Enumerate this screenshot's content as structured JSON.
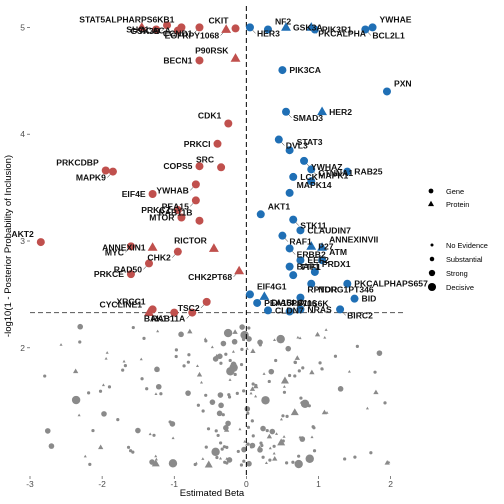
{
  "chart_data": {
    "type": "scatter",
    "xlabel": "Estimated Beta",
    "ylabel": "-log10(1 - Posterior Probability of Inclusion)",
    "xlim": [
      -3.0,
      2.2
    ],
    "ylim": [
      0.8,
      5.2
    ],
    "x_ticks": [
      "-3",
      "-2",
      "-1",
      "0",
      "1",
      "2"
    ],
    "x_tick_values": [
      -3,
      -2,
      -1,
      0,
      1,
      2
    ],
    "y_ticks": [
      "2",
      "3",
      "4",
      "5"
    ],
    "y_tick_values": [
      2,
      3,
      4,
      5
    ],
    "threshold_y": 2.33,
    "zero_x": 0,
    "colors": {
      "negative": "#c0504d",
      "positive": "#1f6fb5",
      "insignificant": "#8a8a8a"
    },
    "legend_type": {
      "items": [
        {
          "label": "Gene",
          "shape": "circle"
        },
        {
          "label": "Protein",
          "shape": "triangle"
        }
      ]
    },
    "legend_size": {
      "items": [
        {
          "label": "No Evidence",
          "size": 2.0
        },
        {
          "label": "Substantial",
          "size": 3.0
        },
        {
          "label": "Strong",
          "size": 4.2
        },
        {
          "label": "Decisive",
          "size": 5.4
        }
      ]
    },
    "legend_placement": "right",
    "labeled_points": [
      {
        "label": "STAT5ALPHA",
        "x": -1.45,
        "y": 5.0,
        "shape": "triangle"
      },
      {
        "label": "GSK3B",
        "x": -1.1,
        "y": 5.02,
        "shape": "circle"
      },
      {
        "label": "SHC1",
        "x": -1.25,
        "y": 4.98,
        "shape": "circle"
      },
      {
        "label": "RPS6KB1",
        "x": -0.9,
        "y": 5.0,
        "shape": "circle"
      },
      {
        "label": "CCND1",
        "x": -0.65,
        "y": 5.0,
        "shape": "circle"
      },
      {
        "label": "ACACA",
        "x": -0.95,
        "y": 4.97,
        "shape": "circle"
      },
      {
        "label": "CKIT",
        "x": -0.15,
        "y": 4.99,
        "shape": "circle"
      },
      {
        "label": "EGFRPY1068",
        "x": -0.28,
        "y": 4.98,
        "shape": "triangle"
      },
      {
        "label": "BECN1",
        "x": -0.65,
        "y": 4.69,
        "shape": "circle"
      },
      {
        "label": "P90RSK",
        "x": -0.15,
        "y": 4.71,
        "shape": "triangle"
      },
      {
        "label": "HER3",
        "x": 0.05,
        "y": 5.0,
        "shape": "circle"
      },
      {
        "label": "GSK3A",
        "x": 0.55,
        "y": 5.0,
        "shape": "triangle"
      },
      {
        "label": "NF2",
        "x": 0.3,
        "y": 4.98,
        "shape": "circle"
      },
      {
        "label": "PKCALPHA",
        "x": 0.9,
        "y": 5.0,
        "shape": "triangle"
      },
      {
        "label": "PIK3R1",
        "x": 0.95,
        "y": 4.98,
        "shape": "circle"
      },
      {
        "label": "YWHAE",
        "x": 1.75,
        "y": 5.0,
        "shape": "circle"
      },
      {
        "label": "BCL2L1",
        "x": 1.65,
        "y": 4.98,
        "shape": "circle"
      },
      {
        "label": "PIK3CA",
        "x": 0.5,
        "y": 4.6,
        "shape": "circle"
      },
      {
        "label": "PXN",
        "x": 1.95,
        "y": 4.4,
        "shape": "circle"
      },
      {
        "label": "SMAD3",
        "x": 0.55,
        "y": 4.21,
        "shape": "circle"
      },
      {
        "label": "HER2",
        "x": 1.05,
        "y": 4.21,
        "shape": "triangle"
      },
      {
        "label": "CDK1",
        "x": -0.25,
        "y": 4.1,
        "shape": "circle"
      },
      {
        "label": "DVL3",
        "x": 0.45,
        "y": 3.95,
        "shape": "circle"
      },
      {
        "label": "PRKCI",
        "x": -0.4,
        "y": 3.91,
        "shape": "circle"
      },
      {
        "label": "STAT3",
        "x": 0.6,
        "y": 3.85,
        "shape": "circle"
      },
      {
        "label": "YWHAZ",
        "x": 0.8,
        "y": 3.75,
        "shape": "circle"
      },
      {
        "label": "COPS5",
        "x": -0.65,
        "y": 3.7,
        "shape": "circle"
      },
      {
        "label": "SRC",
        "x": -0.35,
        "y": 3.69,
        "shape": "circle"
      },
      {
        "label": "MAPK1",
        "x": 0.9,
        "y": 3.67,
        "shape": "circle"
      },
      {
        "label": "RAB25",
        "x": 1.4,
        "y": 3.65,
        "shape": "circle"
      },
      {
        "label": "PRKCDBP",
        "x": -1.95,
        "y": 3.66,
        "shape": "circle"
      },
      {
        "label": "MAPK9",
        "x": -1.85,
        "y": 3.65,
        "shape": "circle"
      },
      {
        "label": "LCK",
        "x": 0.65,
        "y": 3.6,
        "shape": "circle"
      },
      {
        "label": "CTNNA1",
        "x": 0.9,
        "y": 3.56,
        "shape": "circle"
      },
      {
        "label": "YWHAB",
        "x": -0.7,
        "y": 3.53,
        "shape": "circle"
      },
      {
        "label": "EIF4E",
        "x": -1.3,
        "y": 3.44,
        "shape": "circle"
      },
      {
        "label": "MAPK14",
        "x": 0.6,
        "y": 3.45,
        "shape": "circle"
      },
      {
        "label": "PEA15",
        "x": -0.7,
        "y": 3.38,
        "shape": "circle"
      },
      {
        "label": "PRKCZ",
        "x": -0.95,
        "y": 3.29,
        "shape": "circle"
      },
      {
        "label": "AKT1",
        "x": 0.2,
        "y": 3.25,
        "shape": "circle"
      },
      {
        "label": "STK11",
        "x": 0.65,
        "y": 3.2,
        "shape": "circle"
      },
      {
        "label": "MTOR",
        "x": -0.9,
        "y": 3.22,
        "shape": "circle"
      },
      {
        "label": "RAB11B",
        "x": -0.65,
        "y": 3.19,
        "shape": "circle"
      },
      {
        "label": "RAF1",
        "x": 0.5,
        "y": 3.05,
        "shape": "circle"
      },
      {
        "label": "CLAUDIN7",
        "x": 0.75,
        "y": 3.1,
        "shape": "circle"
      },
      {
        "label": "AKT2",
        "x": -2.85,
        "y": 2.99,
        "shape": "circle"
      },
      {
        "label": "MYC",
        "x": -1.6,
        "y": 2.95,
        "shape": "circle"
      },
      {
        "label": "ANNEXIN1",
        "x": -1.3,
        "y": 2.94,
        "shape": "triangle"
      },
      {
        "label": "RICTOR",
        "x": -0.45,
        "y": 2.93,
        "shape": "triangle"
      },
      {
        "label": "ERBB2",
        "x": 0.6,
        "y": 2.93,
        "shape": "circle"
      },
      {
        "label": "P27",
        "x": 0.9,
        "y": 2.95,
        "shape": "triangle"
      },
      {
        "label": "ANNEXINVII",
        "x": 1.05,
        "y": 2.94,
        "shape": "triangle"
      },
      {
        "label": "CHK2",
        "x": -0.95,
        "y": 2.9,
        "shape": "circle"
      },
      {
        "label": "EEF2",
        "x": 0.75,
        "y": 2.82,
        "shape": "circle"
      },
      {
        "label": "ATM",
        "x": 1.05,
        "y": 2.82,
        "shape": "circle"
      },
      {
        "label": "RAD50",
        "x": -1.35,
        "y": 2.79,
        "shape": "circle"
      },
      {
        "label": "BAP1",
        "x": 0.6,
        "y": 2.76,
        "shape": "circle"
      },
      {
        "label": "PRDX1",
        "x": 0.95,
        "y": 2.71,
        "shape": "circle"
      },
      {
        "label": "CHK2PT68",
        "x": -0.1,
        "y": 2.72,
        "shape": "triangle"
      },
      {
        "label": "PRKCE",
        "x": -1.6,
        "y": 2.69,
        "shape": "circle"
      },
      {
        "label": "TTF1",
        "x": 0.65,
        "y": 2.68,
        "shape": "circle"
      },
      {
        "label": "NDRG1PT346",
        "x": 0.9,
        "y": 2.6,
        "shape": "circle"
      },
      {
        "label": "PKCALPHAPS657",
        "x": 1.4,
        "y": 2.6,
        "shape": "circle"
      },
      {
        "label": "EIF4G1",
        "x": 0.05,
        "y": 2.5,
        "shape": "circle"
      },
      {
        "label": "DIABLO",
        "x": 0.25,
        "y": 2.48,
        "shape": "triangle"
      },
      {
        "label": "BID",
        "x": 1.5,
        "y": 2.46,
        "shape": "circle"
      },
      {
        "label": "RPTOR",
        "x": 0.75,
        "y": 2.47,
        "shape": "circle"
      },
      {
        "label": "TSC2",
        "x": -0.55,
        "y": 2.43,
        "shape": "circle"
      },
      {
        "label": "PEA15PS116",
        "x": 0.15,
        "y": 2.42,
        "shape": "circle"
      },
      {
        "label": "XRCC1",
        "x": -1.3,
        "y": 2.36,
        "shape": "circle"
      },
      {
        "label": "BIRC2",
        "x": 1.3,
        "y": 2.36,
        "shape": "circle"
      },
      {
        "label": "NRAS",
        "x": 0.75,
        "y": 2.36,
        "shape": "circle"
      },
      {
        "label": "CYCLINE1",
        "x": -1.35,
        "y": 2.33,
        "shape": "triangle"
      },
      {
        "label": "RAB11A",
        "x": -0.75,
        "y": 2.33,
        "shape": "circle"
      },
      {
        "label": "CLDN7",
        "x": 0.3,
        "y": 2.35,
        "shape": "circle"
      },
      {
        "label": "P70S6K",
        "x": 0.6,
        "y": 2.34,
        "shape": "circle"
      },
      {
        "label": "BAK1",
        "x": -1.0,
        "y": 2.33,
        "shape": "circle"
      }
    ]
  }
}
